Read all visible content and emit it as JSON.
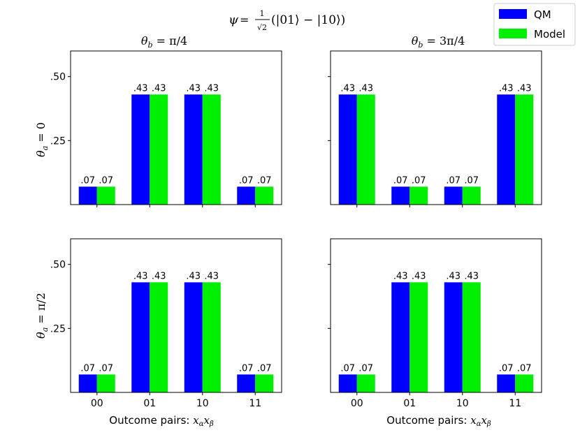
{
  "figure": {
    "suptitle": "ψ = (1/√2)(|01⟩ − |10⟩)",
    "suptitle_parts": {
      "psi": "ψ",
      "eq": "=",
      "num": "1",
      "den": "√2",
      "state": "(|01⟩ − |10⟩)"
    },
    "col_titles": [
      "θ_b = π/4",
      "θ_b = 3π/4"
    ],
    "row_labels": [
      "θ_a = 0",
      "θ_a = π/2"
    ],
    "xlabel": "Outcome pairs: x_α x_β",
    "xlabel_text": "Outcome pairs: ",
    "xlabel_math": "x",
    "xlabel_math_sub1": "α",
    "xlabel_math_sub2": "β"
  },
  "legend": {
    "entries": [
      {
        "name": "QM",
        "color": "#0000ff"
      },
      {
        "name": "Model",
        "color": "#00ee00"
      }
    ]
  },
  "chart_data": [
    {
      "type": "bar",
      "title": "θ_b = π/4",
      "row_label": "θ_a = 0",
      "categories": [
        "00",
        "01",
        "10",
        "11"
      ],
      "series": [
        {
          "name": "QM",
          "values": [
            0.07,
            0.43,
            0.43,
            0.07
          ],
          "labels": [
            ".07",
            ".43",
            ".43",
            ".07"
          ]
        },
        {
          "name": "Model",
          "values": [
            0.07,
            0.43,
            0.43,
            0.07
          ],
          "labels": [
            ".07",
            ".43",
            ".43",
            ".07"
          ]
        }
      ],
      "yticks": [
        0.25,
        0.5
      ],
      "ytick_labels": [
        ".25",
        ".50"
      ],
      "ylim": [
        0,
        0.6
      ],
      "show_xticks": false,
      "show_yticks": true,
      "xlabel": ""
    },
    {
      "type": "bar",
      "title": "θ_b = 3π/4",
      "row_label": "",
      "categories": [
        "00",
        "01",
        "10",
        "11"
      ],
      "series": [
        {
          "name": "QM",
          "values": [
            0.43,
            0.07,
            0.07,
            0.43
          ],
          "labels": [
            ".43",
            ".07",
            ".07",
            ".43"
          ]
        },
        {
          "name": "Model",
          "values": [
            0.43,
            0.07,
            0.07,
            0.43
          ],
          "labels": [
            ".43",
            ".07",
            ".07",
            ".43"
          ]
        }
      ],
      "yticks": [
        0.25,
        0.5
      ],
      "ytick_labels": [
        ".25",
        ".50"
      ],
      "ylim": [
        0,
        0.6
      ],
      "show_xticks": false,
      "show_yticks": false,
      "xlabel": ""
    },
    {
      "type": "bar",
      "title": "",
      "row_label": "θ_a = π/2",
      "categories": [
        "00",
        "01",
        "10",
        "11"
      ],
      "series": [
        {
          "name": "QM",
          "values": [
            0.07,
            0.43,
            0.43,
            0.07
          ],
          "labels": [
            ".07",
            ".43",
            ".43",
            ".07"
          ]
        },
        {
          "name": "Model",
          "values": [
            0.07,
            0.43,
            0.43,
            0.07
          ],
          "labels": [
            ".07",
            ".43",
            ".43",
            ".07"
          ]
        }
      ],
      "yticks": [
        0.25,
        0.5
      ],
      "ytick_labels": [
        ".25",
        ".50"
      ],
      "ylim": [
        0,
        0.6
      ],
      "show_xticks": true,
      "show_yticks": true,
      "xlabel": "Outcome pairs: x_α x_β"
    },
    {
      "type": "bar",
      "title": "",
      "row_label": "",
      "categories": [
        "00",
        "01",
        "10",
        "11"
      ],
      "series": [
        {
          "name": "QM",
          "values": [
            0.07,
            0.43,
            0.43,
            0.07
          ],
          "labels": [
            ".07",
            ".43",
            ".43",
            ".07"
          ]
        },
        {
          "name": "Model",
          "values": [
            0.07,
            0.43,
            0.43,
            0.07
          ],
          "labels": [
            ".07",
            ".43",
            ".43",
            ".07"
          ]
        }
      ],
      "yticks": [
        0.25,
        0.5
      ],
      "ytick_labels": [
        ".25",
        ".50"
      ],
      "ylim": [
        0,
        0.6
      ],
      "show_xticks": true,
      "show_yticks": false,
      "xlabel": "Outcome pairs: x_α x_β"
    }
  ]
}
